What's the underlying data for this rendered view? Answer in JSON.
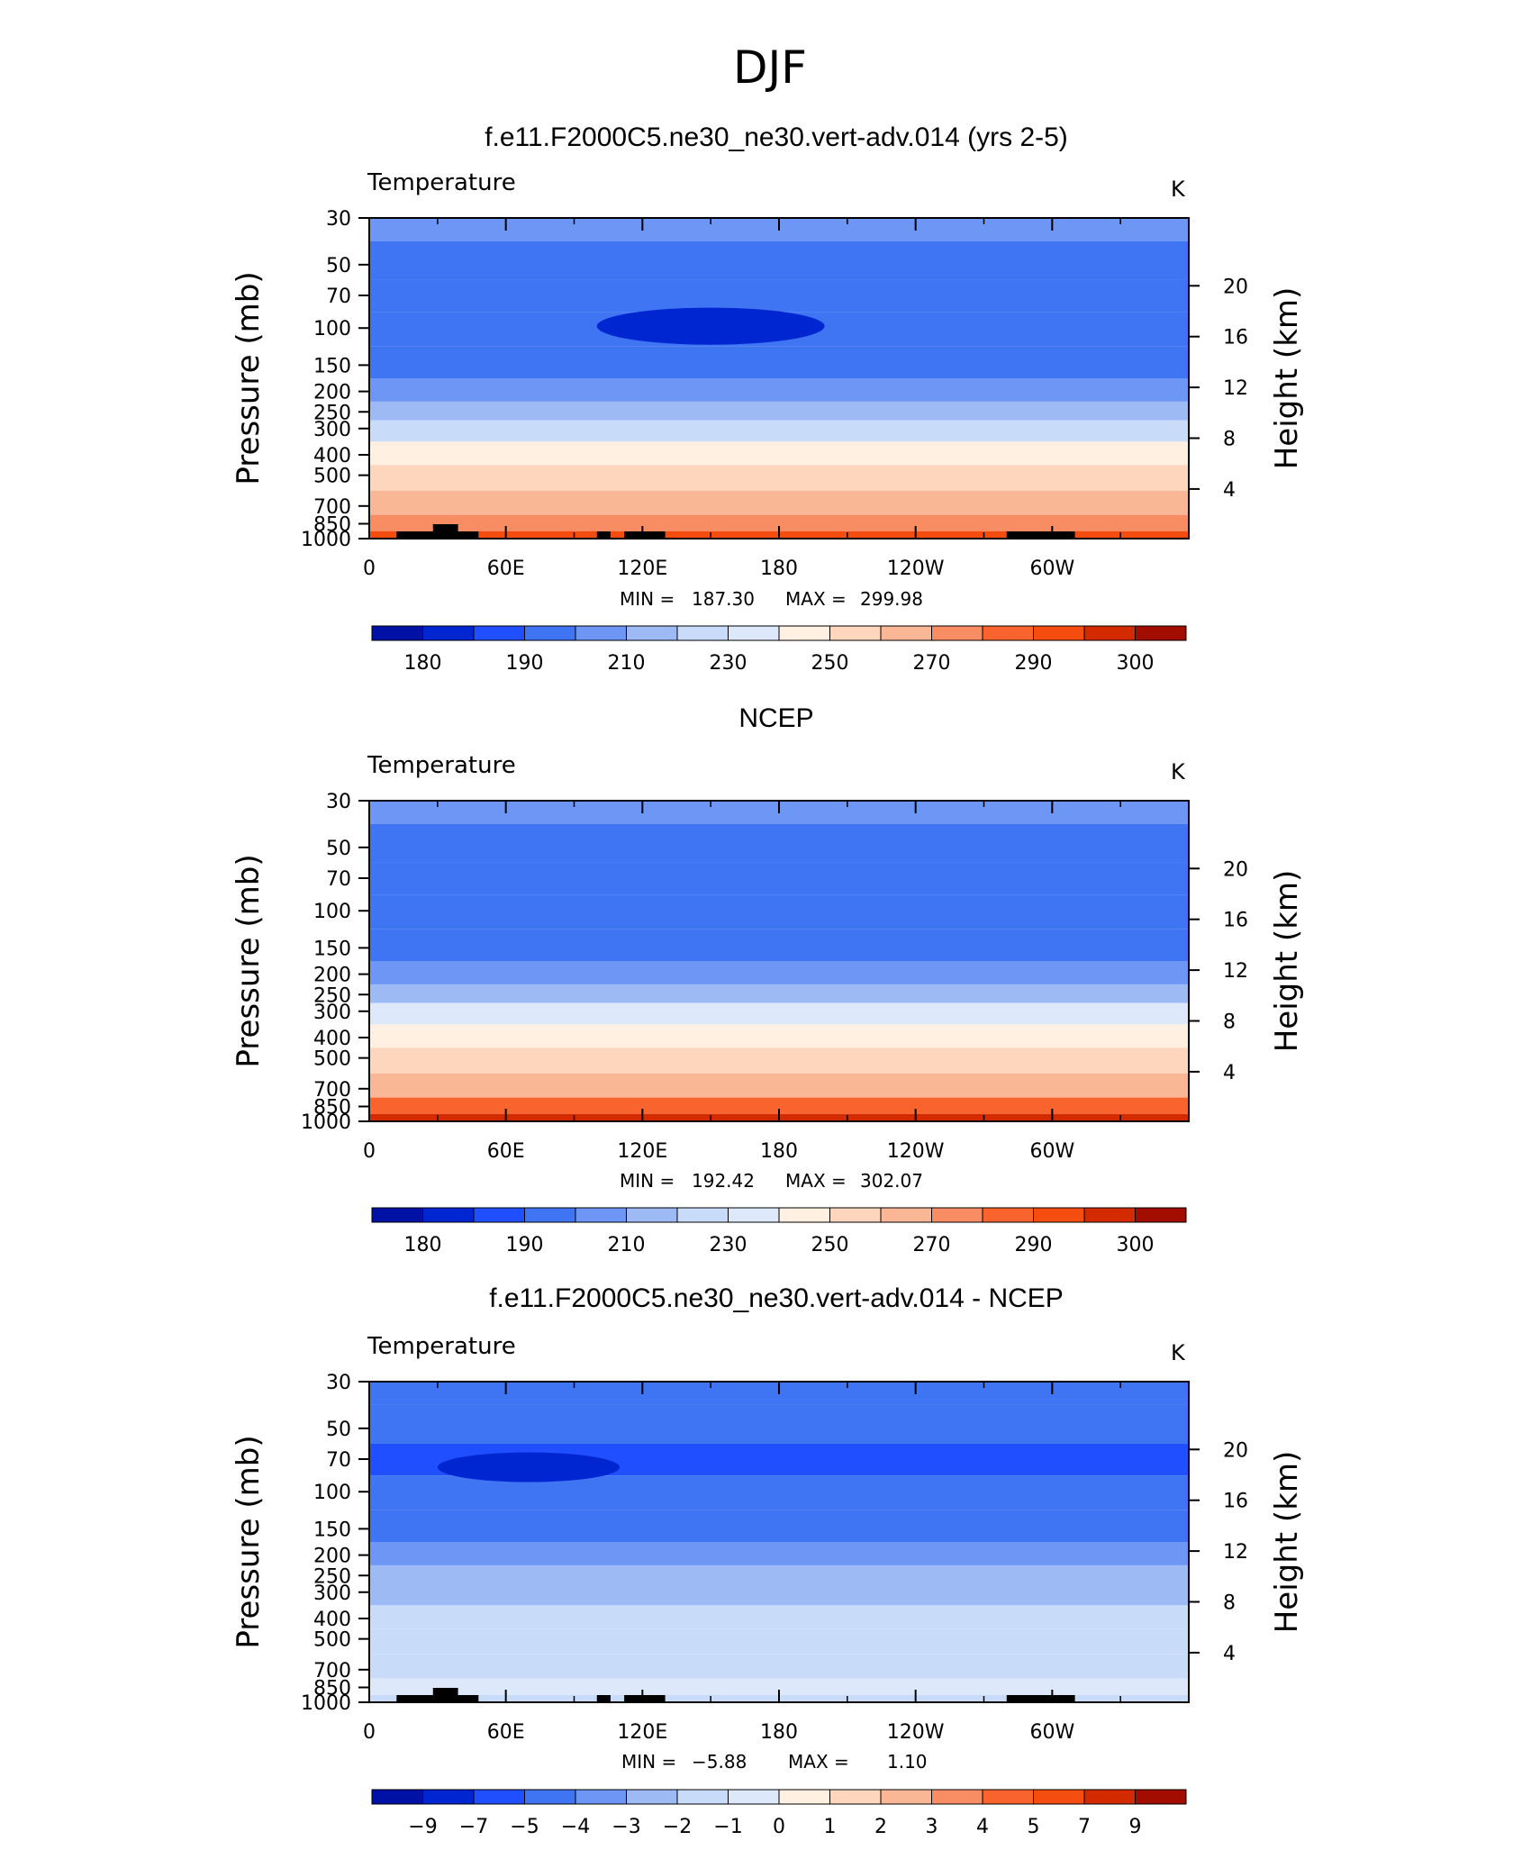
{
  "figure": {
    "season_title": "DJF"
  },
  "colors": {
    "temperature_levels": [
      "#00008b",
      "#0012a6",
      "#0026d1",
      "#1f4fff",
      "#3f74f2",
      "#6e97f5",
      "#9dbaf5",
      "#c8dcfa",
      "#dde9fb",
      "#fff0e1",
      "#fdd6bd",
      "#fab796",
      "#f88d64",
      "#f8632e",
      "#f54c0f",
      "#d42a00",
      "#a30d00",
      "#7a0000"
    ],
    "difference_levels": [
      "#00008b",
      "#0012a6",
      "#0026d1",
      "#1f4fff",
      "#3f74f2",
      "#6e97f5",
      "#9dbaf5",
      "#c8dcfa",
      "#dde9fb",
      "#fff0e1",
      "#fdd6bd",
      "#fab796",
      "#f88d64",
      "#f8632e",
      "#f54c0f",
      "#d42a00",
      "#a30d00",
      "#7a0000"
    ],
    "topography": "#000000"
  },
  "chart_data": [
    {
      "type": "heatmap",
      "title": "f.e11.F2000C5.ne30_ne30.vert-adv.014 (yrs 2-5)",
      "variable_label": "Temperature",
      "units": "K",
      "ylabel": "Pressure  (mb)",
      "ylabel_right": "Height  (km)",
      "x_ticks": [
        "0",
        "60E",
        "120E",
        "180",
        "120W",
        "60W"
      ],
      "y_ticks": [
        "30",
        "50",
        "70",
        "100",
        "150",
        "200",
        "250",
        "300",
        "400",
        "500",
        "700",
        "850",
        "1000"
      ],
      "y_ticks_right": [
        "20",
        "16",
        "12",
        "8",
        "4"
      ],
      "min_label": "MIN =",
      "min_value": "187.30",
      "max_label": "MAX =",
      "max_value": "299.98",
      "colorbar_labels": [
        "180",
        "190",
        "210",
        "230",
        "250",
        "270",
        "290",
        "300"
      ],
      "layers": [
        {
          "p": 30,
          "value": 215
        },
        {
          "p": 50,
          "value": 205
        },
        {
          "p": 70,
          "value": 200
        },
        {
          "p": 100,
          "value": 200
        },
        {
          "p": 150,
          "value": 205
        },
        {
          "p": 200,
          "value": 215
        },
        {
          "p": 250,
          "value": 225
        },
        {
          "p": 300,
          "value": 235
        },
        {
          "p": 400,
          "value": 250
        },
        {
          "p": 500,
          "value": 260
        },
        {
          "p": 700,
          "value": 275
        },
        {
          "p": 850,
          "value": 282
        },
        {
          "p": 1000,
          "value": 290
        }
      ],
      "min_region": {
        "value": 187.3,
        "lon_range": [
          100,
          200
        ],
        "p_range": [
          80,
          120
        ]
      }
    },
    {
      "type": "heatmap",
      "title": "NCEP",
      "variable_label": "Temperature",
      "units": "K",
      "ylabel": "Pressure  (mb)",
      "ylabel_right": "Height  (km)",
      "x_ticks": [
        "0",
        "60E",
        "120E",
        "180",
        "120W",
        "60W"
      ],
      "y_ticks": [
        "30",
        "50",
        "70",
        "100",
        "150",
        "200",
        "250",
        "300",
        "400",
        "500",
        "700",
        "850",
        "1000"
      ],
      "y_ticks_right": [
        "20",
        "16",
        "12",
        "8",
        "4"
      ],
      "min_label": "MIN =",
      "min_value": "192.42",
      "max_label": "MAX =",
      "max_value": "302.07",
      "colorbar_labels": [
        "180",
        "190",
        "210",
        "230",
        "250",
        "270",
        "290",
        "300"
      ],
      "layers": [
        {
          "p": 30,
          "value": 210
        },
        {
          "p": 50,
          "value": 205
        },
        {
          "p": 70,
          "value": 200
        },
        {
          "p": 100,
          "value": 200
        },
        {
          "p": 150,
          "value": 205
        },
        {
          "p": 200,
          "value": 215
        },
        {
          "p": 250,
          "value": 225
        },
        {
          "p": 300,
          "value": 240
        },
        {
          "p": 400,
          "value": 250
        },
        {
          "p": 500,
          "value": 260
        },
        {
          "p": 700,
          "value": 275
        },
        {
          "p": 850,
          "value": 285
        },
        {
          "p": 1000,
          "value": 295
        }
      ]
    },
    {
      "type": "heatmap",
      "title": "f.e11.F2000C5.ne30_ne30.vert-adv.014 - NCEP",
      "variable_label": "Temperature",
      "units": "K",
      "ylabel": "Pressure  (mb)",
      "ylabel_right": "Height  (km)",
      "x_ticks": [
        "0",
        "60E",
        "120E",
        "180",
        "120W",
        "60W"
      ],
      "y_ticks": [
        "30",
        "50",
        "70",
        "100",
        "150",
        "200",
        "250",
        "300",
        "400",
        "500",
        "700",
        "850",
        "1000"
      ],
      "y_ticks_right": [
        "20",
        "16",
        "12",
        "8",
        "4"
      ],
      "min_label": "MIN =",
      "min_value": "−5.88",
      "max_label": "MAX =",
      "max_value": "1.10",
      "colorbar_labels": [
        "−9",
        "−7",
        "−5",
        "−4",
        "−3",
        "−2",
        "−1",
        "0",
        "1",
        "2",
        "3",
        "4",
        "5",
        "7",
        "9"
      ],
      "layers": [
        {
          "p": 30,
          "value": -3.5
        },
        {
          "p": 50,
          "value": -3.5
        },
        {
          "p": 70,
          "value": -4.5
        },
        {
          "p": 100,
          "value": -4.0
        },
        {
          "p": 150,
          "value": -3.5
        },
        {
          "p": 200,
          "value": -2.5
        },
        {
          "p": 250,
          "value": -2.0
        },
        {
          "p": 300,
          "value": -1.5
        },
        {
          "p": 400,
          "value": -0.5
        },
        {
          "p": 500,
          "value": -0.5
        },
        {
          "p": 700,
          "value": -0.5
        },
        {
          "p": 850,
          "value": 0.5
        },
        {
          "p": 1000,
          "value": -0.5
        }
      ],
      "min_region": {
        "value": -5.88,
        "lon_range": [
          30,
          110
        ],
        "p_range": [
          65,
          90
        ]
      }
    }
  ]
}
